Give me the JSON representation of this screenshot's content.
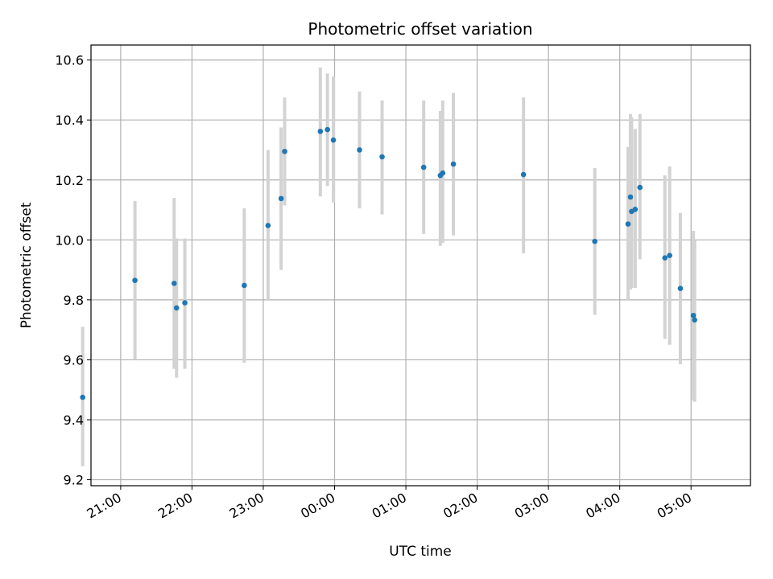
{
  "chart_data": {
    "type": "scatter",
    "title": "Photometric offset variation",
    "xlabel": "UTC time",
    "ylabel": "Photometric offset",
    "x_unit": "UTC",
    "xlim": [
      "20:35",
      "05:50"
    ],
    "ylim": [
      9.18,
      10.65
    ],
    "x_tick_labels": [
      "21:00",
      "22:00",
      "23:00",
      "00:00",
      "01:00",
      "02:00",
      "03:00",
      "04:00",
      "05:00"
    ],
    "y_ticks": [
      9.2,
      9.4,
      9.6,
      9.8,
      10.0,
      10.2,
      10.4,
      10.6
    ],
    "grid": true,
    "marker_color": "#1f77b4",
    "errorbar_color": "#d3d3d3",
    "points": [
      {
        "t": "20:28",
        "y": 9.475,
        "lo": 9.245,
        "hi": 9.71
      },
      {
        "t": "21:12",
        "y": 9.865,
        "lo": 9.6,
        "hi": 10.13
      },
      {
        "t": "21:45",
        "y": 9.855,
        "lo": 9.57,
        "hi": 10.14
      },
      {
        "t": "21:47",
        "y": 9.773,
        "lo": 9.54,
        "hi": 10.005
      },
      {
        "t": "21:54",
        "y": 9.79,
        "lo": 9.57,
        "hi": 10.005
      },
      {
        "t": "22:44",
        "y": 9.848,
        "lo": 9.59,
        "hi": 10.105
      },
      {
        "t": "23:04",
        "y": 10.048,
        "lo": 9.8,
        "hi": 10.3
      },
      {
        "t": "23:15",
        "y": 10.138,
        "lo": 9.9,
        "hi": 10.375
      },
      {
        "t": "23:18",
        "y": 10.295,
        "lo": 10.115,
        "hi": 10.475
      },
      {
        "t": "23:48",
        "y": 10.362,
        "lo": 10.145,
        "hi": 10.575
      },
      {
        "t": "23:54",
        "y": 10.368,
        "lo": 10.18,
        "hi": 10.555
      },
      {
        "t": "23:59",
        "y": 10.333,
        "lo": 10.125,
        "hi": 10.545
      },
      {
        "t": "00:21",
        "y": 10.3,
        "lo": 10.105,
        "hi": 10.495
      },
      {
        "t": "00:40",
        "y": 10.277,
        "lo": 10.085,
        "hi": 10.465
      },
      {
        "t": "01:15",
        "y": 10.242,
        "lo": 10.02,
        "hi": 10.465
      },
      {
        "t": "01:29",
        "y": 10.215,
        "lo": 9.98,
        "hi": 10.43
      },
      {
        "t": "01:31",
        "y": 10.223,
        "lo": 9.99,
        "hi": 10.465
      },
      {
        "t": "01:40",
        "y": 10.253,
        "lo": 10.015,
        "hi": 10.49
      },
      {
        "t": "02:39",
        "y": 10.218,
        "lo": 9.955,
        "hi": 10.475
      },
      {
        "t": "03:39",
        "y": 9.995,
        "lo": 9.75,
        "hi": 10.24
      },
      {
        "t": "04:07",
        "y": 10.053,
        "lo": 9.8,
        "hi": 10.31
      },
      {
        "t": "04:09",
        "y": 10.143,
        "lo": 9.835,
        "hi": 10.42
      },
      {
        "t": "04:10",
        "y": 10.095,
        "lo": 9.84,
        "hi": 10.41
      },
      {
        "t": "04:13",
        "y": 10.102,
        "lo": 9.84,
        "hi": 10.37
      },
      {
        "t": "04:17",
        "y": 10.175,
        "lo": 9.935,
        "hi": 10.42
      },
      {
        "t": "04:38",
        "y": 9.94,
        "lo": 9.67,
        "hi": 10.215
      },
      {
        "t": "04:42",
        "y": 9.948,
        "lo": 9.65,
        "hi": 10.245
      },
      {
        "t": "04:51",
        "y": 9.838,
        "lo": 9.585,
        "hi": 10.09
      },
      {
        "t": "05:02",
        "y": 9.748,
        "lo": 9.465,
        "hi": 10.03
      },
      {
        "t": "05:03",
        "y": 9.733,
        "lo": 9.46,
        "hi": 10.0
      }
    ]
  }
}
